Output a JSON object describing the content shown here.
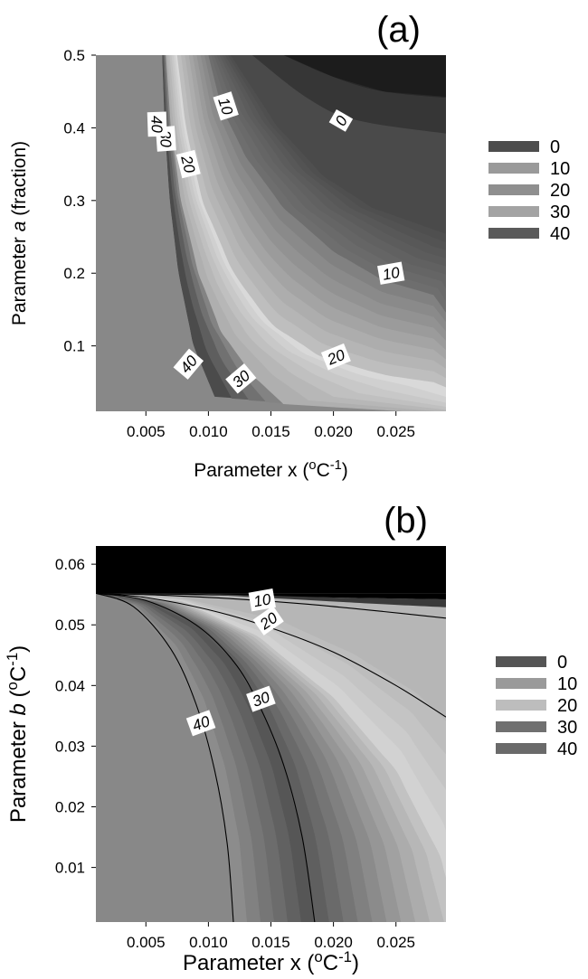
{
  "chart_data": [
    {
      "type": "contour",
      "panel_label": "(a)",
      "xlabel_parts": [
        "Parameter x (",
        "o",
        "C",
        "-1",
        ")"
      ],
      "ylabel_parts": [
        "Parameter ",
        "a",
        " (fraction)"
      ],
      "xlim": [
        0.001,
        0.029
      ],
      "ylim": [
        0.01,
        0.5
      ],
      "x_ticks": [
        "0.005",
        "0.010",
        "0.015",
        "0.020",
        "0.025"
      ],
      "x_tick_values": [
        0.005,
        0.01,
        0.015,
        0.02,
        0.025
      ],
      "y_ticks": [
        "0.1",
        "0.2",
        "0.3",
        "0.4",
        "0.5"
      ],
      "y_tick_values": [
        0.1,
        0.2,
        0.3,
        0.4,
        0.5
      ],
      "legend": {
        "position": "right",
        "entries": [
          {
            "label": "0",
            "color": "#4d4d4d"
          },
          {
            "label": "10",
            "color": "#9a9a9a"
          },
          {
            "label": "20",
            "color": "#8f8f8f"
          },
          {
            "label": "30",
            "color": "#a3a3a3"
          },
          {
            "label": "40",
            "color": "#5a5a5a"
          }
        ]
      },
      "contour_levels": [
        {
          "level": 0,
          "x": [
            0.016,
            0.02,
            0.024,
            0.028
          ],
          "y": [
            0.5,
            0.45,
            0.42,
            0.4
          ]
        },
        {
          "level": 10,
          "x": [
            0.01,
            0.011,
            0.013,
            0.016,
            0.02,
            0.024,
            0.028
          ],
          "y": [
            0.5,
            0.43,
            0.36,
            0.29,
            0.23,
            0.19,
            0.17
          ]
        },
        {
          "level": 20,
          "x": [
            0.0075,
            0.0082,
            0.0095,
            0.012,
            0.015,
            0.019,
            0.024,
            0.028
          ],
          "y": [
            0.5,
            0.4,
            0.3,
            0.2,
            0.13,
            0.085,
            0.06,
            0.05
          ]
        },
        {
          "level": 30,
          "x": [
            0.0066,
            0.007,
            0.0078,
            0.0092,
            0.011,
            0.0135,
            0.016
          ],
          "y": [
            0.5,
            0.4,
            0.3,
            0.2,
            0.12,
            0.06,
            0.02
          ]
        },
        {
          "level": 40,
          "x": [
            0.0063,
            0.0065,
            0.0069,
            0.0076,
            0.0088,
            0.0105
          ],
          "y": [
            0.5,
            0.4,
            0.3,
            0.2,
            0.1,
            0.03
          ]
        }
      ],
      "labels_on_contours": [
        {
          "text": "0",
          "x": 0.0206,
          "y": 0.41,
          "angle": -60
        },
        {
          "text": "10",
          "x": 0.0114,
          "y": 0.43,
          "angle": 72
        },
        {
          "text": "10",
          "x": 0.0246,
          "y": 0.2,
          "angle": -10
        },
        {
          "text": "20",
          "x": 0.0084,
          "y": 0.35,
          "angle": 76
        },
        {
          "text": "20",
          "x": 0.0202,
          "y": 0.085,
          "angle": -22
        },
        {
          "text": "30",
          "x": 0.0066,
          "y": 0.385,
          "angle": 86
        },
        {
          "text": "30",
          "x": 0.0126,
          "y": 0.055,
          "angle": -40
        },
        {
          "text": "40",
          "x": 0.0059,
          "y": 0.405,
          "angle": 88
        },
        {
          "text": "40",
          "x": 0.0084,
          "y": 0.075,
          "angle": -50
        }
      ]
    },
    {
      "type": "contour",
      "panel_label": "(b)",
      "xlabel_parts": [
        "Parameter x (",
        "o",
        "C",
        "-1",
        ")"
      ],
      "ylabel_parts": [
        "Parameter ",
        "b",
        " (",
        "o",
        "C",
        "-1",
        ")"
      ],
      "xlim": [
        0.001,
        0.029
      ],
      "ylim": [
        0.001,
        0.063
      ],
      "x_ticks": [
        "0.005",
        "0.010",
        "0.015",
        "0.020",
        "0.025"
      ],
      "x_tick_values": [
        0.005,
        0.01,
        0.015,
        0.02,
        0.025
      ],
      "y_ticks": [
        "0.01",
        "0.02",
        "0.03",
        "0.04",
        "0.05",
        "0.06"
      ],
      "y_tick_values": [
        0.01,
        0.02,
        0.03,
        0.04,
        0.05,
        0.06
      ],
      "legend": {
        "position": "right",
        "entries": [
          {
            "label": "0",
            "color": "#555555"
          },
          {
            "label": "10",
            "color": "#9a9a9a"
          },
          {
            "label": "20",
            "color": "#bdbdbd"
          },
          {
            "label": "30",
            "color": "#707070"
          },
          {
            "label": "40",
            "color": "#6a6a6a"
          }
        ]
      },
      "contour_levels": [
        {
          "level": 10,
          "x": [
            0.001,
            0.006,
            0.012,
            0.018,
            0.024,
            0.029
          ],
          "y": [
            0.0552,
            0.0549,
            0.0543,
            0.0534,
            0.0522,
            0.0511
          ]
        },
        {
          "level": 20,
          "x": [
            0.001,
            0.005,
            0.01,
            0.015,
            0.02,
            0.025,
            0.029
          ],
          "y": [
            0.0552,
            0.0545,
            0.0525,
            0.0495,
            0.0455,
            0.04,
            0.0348
          ]
        },
        {
          "level": 30,
          "x": [
            0.001,
            0.005,
            0.009,
            0.012,
            0.014,
            0.016,
            0.0175,
            0.0185
          ],
          "y": [
            0.0552,
            0.054,
            0.05,
            0.044,
            0.037,
            0.027,
            0.015,
            0.001
          ]
        },
        {
          "level": 40,
          "x": [
            0.001,
            0.004,
            0.007,
            0.009,
            0.0105,
            0.0115,
            0.012
          ],
          "y": [
            0.0552,
            0.053,
            0.046,
            0.037,
            0.026,
            0.014,
            0.001
          ]
        }
      ],
      "labels_on_contours": [
        {
          "text": "10",
          "x": 0.0143,
          "y": 0.0541,
          "angle": -10
        },
        {
          "text": "20",
          "x": 0.0148,
          "y": 0.0507,
          "angle": -35
        },
        {
          "text": "30",
          "x": 0.0142,
          "y": 0.0378,
          "angle": -20
        },
        {
          "text": "40",
          "x": 0.0094,
          "y": 0.0338,
          "angle": -20
        }
      ]
    }
  ]
}
